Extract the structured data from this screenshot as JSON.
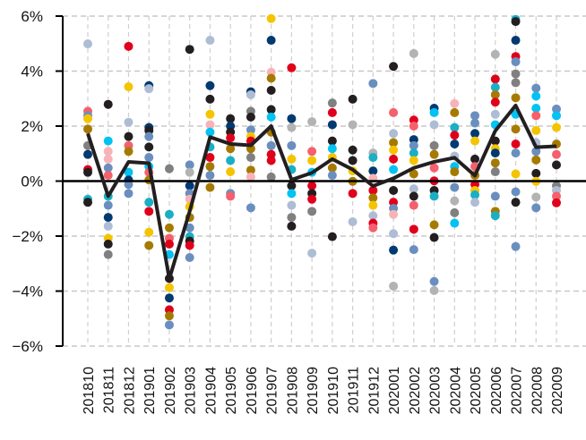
{
  "chart_data": {
    "type": "scatter",
    "title": "",
    "xlabel": "",
    "ylabel": "",
    "ylim": [
      -6,
      6
    ],
    "yticks": [
      6,
      4,
      2,
      0,
      -2,
      -4,
      -6
    ],
    "ytick_labels": [
      "6%",
      "4%",
      "2%",
      "0%",
      "−2%",
      "−4%",
      "−6%"
    ],
    "grid": true,
    "categories": [
      "201810",
      "201811",
      "201812",
      "201901",
      "201902",
      "201903",
      "201904",
      "201905",
      "201906",
      "201907",
      "201908",
      "201909",
      "201910",
      "201911",
      "201912",
      "202001",
      "202002",
      "202003",
      "202004",
      "202005",
      "202006",
      "202007",
      "202008",
      "202009"
    ],
    "palette": {
      "navy": "#003a70",
      "red": "#e0001b",
      "pink": "#f4606c",
      "lightpink": "#f7b3b8",
      "gold": "#f5c400",
      "darkgold": "#a67a00",
      "black": "#231f20",
      "gray": "#808080",
      "lightgray": "#b3b3b3",
      "steelblue": "#6a8fbf",
      "lightsteel": "#aebdd4",
      "cyan": "#00c2f3",
      "teal": "#1aafc4"
    },
    "line": {
      "color": "#231f20",
      "values": [
        1.73,
        -0.55,
        0.7,
        0.65,
        -3.55,
        -1.1,
        1.6,
        1.35,
        1.3,
        2.0,
        0.05,
        0.3,
        0.8,
        0.42,
        -0.18,
        0.1,
        0.48,
        0.7,
        0.85,
        0.2,
        1.83,
        2.75,
        1.23,
        1.27
      ]
    },
    "points": [
      [
        [
          4.99,
          "lightsteel"
        ],
        [
          2.54,
          "pink"
        ],
        [
          2.38,
          "steelblue"
        ],
        [
          2.27,
          "gold"
        ],
        [
          1.89,
          "darkgold"
        ],
        [
          1.29,
          "gray"
        ],
        [
          0.97,
          "navy"
        ],
        [
          0.42,
          "red"
        ],
        [
          0.32,
          "black"
        ],
        [
          -0.66,
          "teal"
        ],
        [
          -0.77,
          "black"
        ]
      ],
      [
        [
          2.79,
          "black"
        ],
        [
          1.46,
          "cyan"
        ],
        [
          1.08,
          "lightpink"
        ],
        [
          0.8,
          "lightpink"
        ],
        [
          0.48,
          "steelblue"
        ],
        [
          0.21,
          "pink"
        ],
        [
          -0.55,
          "teal"
        ],
        [
          -0.88,
          "steelblue"
        ],
        [
          -1.32,
          "navy"
        ],
        [
          -1.64,
          "lightsteel"
        ],
        [
          -2.08,
          "gold"
        ],
        [
          -2.29,
          "black"
        ],
        [
          -2.67,
          "gray"
        ]
      ],
      [
        [
          4.9,
          "red"
        ],
        [
          3.43,
          "gold"
        ],
        [
          2.14,
          "lightsteel"
        ],
        [
          1.62,
          "black"
        ],
        [
          1.29,
          "pink"
        ],
        [
          1.08,
          "darkgold"
        ],
        [
          0.32,
          "cyan"
        ],
        [
          0.04,
          "navy"
        ],
        [
          -0.12,
          "steelblue"
        ],
        [
          -0.45,
          "steelblue"
        ]
      ],
      [
        [
          3.47,
          "navy"
        ],
        [
          3.36,
          "lightsteel"
        ],
        [
          1.95,
          "navy"
        ],
        [
          1.84,
          "black"
        ],
        [
          1.62,
          "steelblue"
        ],
        [
          1.24,
          "black"
        ],
        [
          0.86,
          "steelblue"
        ],
        [
          0.53,
          "cyan"
        ],
        [
          0.32,
          "pink"
        ],
        [
          0.04,
          "darkgold"
        ],
        [
          -0.77,
          "teal"
        ],
        [
          -1.1,
          "red"
        ],
        [
          -1.86,
          "gold"
        ],
        [
          -2.34,
          "darkgold"
        ]
      ],
      [
        [
          0.45,
          "gray"
        ],
        [
          -1.21,
          "teal"
        ],
        [
          -1.7,
          "darkgold"
        ],
        [
          -2.08,
          "pink"
        ],
        [
          -2.29,
          "red"
        ],
        [
          -2.67,
          "cyan"
        ],
        [
          -3.54,
          "black"
        ],
        [
          -3.87,
          "gold"
        ],
        [
          -4.25,
          "navy"
        ],
        [
          -4.68,
          "red"
        ],
        [
          -4.9,
          "darkgold"
        ],
        [
          -5.23,
          "steelblue"
        ]
      ],
      [
        [
          4.79,
          "black"
        ],
        [
          0.59,
          "steelblue"
        ],
        [
          0.32,
          "lightgray"
        ],
        [
          -0.17,
          "navy"
        ],
        [
          -0.45,
          "steelblue"
        ],
        [
          -0.66,
          "lightpink"
        ],
        [
          -0.93,
          "gold"
        ],
        [
          -1.32,
          "darkgold"
        ],
        [
          -1.7,
          "steelblue"
        ],
        [
          -2.02,
          "teal"
        ],
        [
          -2.18,
          "black"
        ],
        [
          -2.34,
          "red"
        ],
        [
          -2.78,
          "steelblue"
        ]
      ],
      [
        [
          5.12,
          "lightsteel"
        ],
        [
          3.47,
          "navy"
        ],
        [
          2.98,
          "black"
        ],
        [
          2.43,
          "gold"
        ],
        [
          2.05,
          "lightpink"
        ],
        [
          1.78,
          "cyan"
        ],
        [
          1.24,
          "teal"
        ],
        [
          0.86,
          "red"
        ],
        [
          0.53,
          "darkgold"
        ],
        [
          0.21,
          "steelblue"
        ],
        [
          -0.23,
          "darkgold"
        ]
      ],
      [
        [
          2.27,
          "black"
        ],
        [
          2.0,
          "navy"
        ],
        [
          1.78,
          "black"
        ],
        [
          1.57,
          "red"
        ],
        [
          1.18,
          "darkgold"
        ],
        [
          0.75,
          "teal"
        ],
        [
          0.34,
          "gold"
        ],
        [
          -0.45,
          "steelblue"
        ],
        [
          -0.55,
          "pink"
        ]
      ],
      [
        [
          3.25,
          "navy"
        ],
        [
          3.14,
          "lightsteel"
        ],
        [
          2.54,
          "gray"
        ],
        [
          2.33,
          "black"
        ],
        [
          1.86,
          "steelblue"
        ],
        [
          1.62,
          "gold"
        ],
        [
          1.46,
          "red"
        ],
        [
          1.18,
          "darkgold"
        ],
        [
          0.86,
          "gray"
        ],
        [
          0.4,
          "darkgold"
        ],
        [
          0.15,
          "lightpink"
        ],
        [
          -0.97,
          "steelblue"
        ]
      ],
      [
        [
          5.91,
          "gold"
        ],
        [
          5.12,
          "navy"
        ],
        [
          3.96,
          "lightpink"
        ],
        [
          3.74,
          "darkgold"
        ],
        [
          3.3,
          "black"
        ],
        [
          2.6,
          "black"
        ],
        [
          2.33,
          "cyan"
        ],
        [
          1.78,
          "darkgold"
        ],
        [
          1.29,
          "steelblue"
        ],
        [
          0.97,
          "red"
        ],
        [
          0.75,
          "red"
        ],
        [
          0.15,
          "gray"
        ]
      ],
      [
        [
          4.12,
          "red"
        ],
        [
          2.27,
          "navy"
        ],
        [
          1.95,
          "lightgray"
        ],
        [
          1.29,
          "steelblue"
        ],
        [
          0.8,
          "gold"
        ],
        [
          0.42,
          "teal"
        ],
        [
          -0.17,
          "black"
        ],
        [
          -0.45,
          "cyan"
        ],
        [
          -0.88,
          "lightsteel"
        ],
        [
          -1.32,
          "gray"
        ],
        [
          -1.64,
          "black"
        ]
      ],
      [
        [
          2.16,
          "lightgray"
        ],
        [
          1.08,
          "pink"
        ],
        [
          0.75,
          "gold"
        ],
        [
          0.32,
          "cyan"
        ],
        [
          -0.17,
          "red"
        ],
        [
          -0.45,
          "black"
        ],
        [
          -0.66,
          "red"
        ],
        [
          -1.1,
          "gray"
        ],
        [
          -2.62,
          "lightsteel"
        ]
      ],
      [
        [
          2.84,
          "gray"
        ],
        [
          2.49,
          "red"
        ],
        [
          2.05,
          "navy"
        ],
        [
          1.46,
          "black"
        ],
        [
          1.18,
          "cyan"
        ],
        [
          0.86,
          "gold"
        ],
        [
          0.48,
          "darkgold"
        ],
        [
          0.21,
          "steelblue"
        ],
        [
          -2.02,
          "black"
        ]
      ],
      [
        [
          2.98,
          "black"
        ],
        [
          2.05,
          "lightgray"
        ],
        [
          1.13,
          "black"
        ],
        [
          0.75,
          "black"
        ],
        [
          0.37,
          "gold"
        ],
        [
          -0.01,
          "darkgold"
        ],
        [
          -0.45,
          "red"
        ],
        [
          -1.48,
          "lightsteel"
        ]
      ],
      [
        [
          3.55,
          "steelblue"
        ],
        [
          1.02,
          "lightgray"
        ],
        [
          0.86,
          "teal"
        ],
        [
          0.37,
          "navy"
        ],
        [
          0.1,
          "lightpink"
        ],
        [
          -0.34,
          "red"
        ],
        [
          -0.61,
          "darkgold"
        ],
        [
          -0.88,
          "gold"
        ],
        [
          -1.26,
          "lightsteel"
        ],
        [
          -1.53,
          "red"
        ],
        [
          -1.7,
          "pink"
        ]
      ],
      [
        [
          4.17,
          "black"
        ],
        [
          2.49,
          "pink"
        ],
        [
          1.73,
          "lightsteel"
        ],
        [
          1.4,
          "darkgold"
        ],
        [
          1.13,
          "gold"
        ],
        [
          0.8,
          "red"
        ],
        [
          0.42,
          "cyan"
        ],
        [
          -0.34,
          "black"
        ],
        [
          -0.77,
          "red"
        ],
        [
          -0.99,
          "steelblue"
        ],
        [
          -1.21,
          "lightpink"
        ],
        [
          -1.91,
          "lightsteel"
        ],
        [
          -2.51,
          "navy"
        ],
        [
          -3.82,
          "lightgray"
        ]
      ],
      [
        [
          4.64,
          "lightgray"
        ],
        [
          2.22,
          "red"
        ],
        [
          2.0,
          "pink"
        ],
        [
          1.51,
          "navy"
        ],
        [
          1.29,
          "steelblue"
        ],
        [
          1.02,
          "teal"
        ],
        [
          0.75,
          "gold"
        ],
        [
          0.26,
          "darkgold"
        ],
        [
          -0.28,
          "lightsteel"
        ],
        [
          -0.55,
          "black"
        ],
        [
          -0.88,
          "pink"
        ],
        [
          -1.75,
          "red"
        ],
        [
          -2.49,
          "steelblue"
        ]
      ],
      [
        [
          2.65,
          "navy"
        ],
        [
          2.49,
          "cyan"
        ],
        [
          2.05,
          "lightsteel"
        ],
        [
          1.29,
          "gray"
        ],
        [
          0.97,
          "darkgold"
        ],
        [
          0.48,
          "pink"
        ],
        [
          0.01,
          "red"
        ],
        [
          -0.34,
          "black"
        ],
        [
          -0.55,
          "teal"
        ],
        [
          -1.59,
          "darkgold"
        ],
        [
          -2.05,
          "black"
        ],
        [
          -3.65,
          "steelblue"
        ],
        [
          -3.98,
          "lightgray"
        ]
      ],
      [
        [
          2.82,
          "lightpink"
        ],
        [
          2.49,
          "darkgold"
        ],
        [
          1.95,
          "teal"
        ],
        [
          1.67,
          "red"
        ],
        [
          1.35,
          "navy"
        ],
        [
          0.91,
          "lightsteel"
        ],
        [
          0.53,
          "cyan"
        ],
        [
          0.34,
          "darkgold"
        ],
        [
          -0.23,
          "steelblue"
        ],
        [
          -0.72,
          "lightgray"
        ],
        [
          -1.15,
          "gray"
        ],
        [
          -1.53,
          "cyan"
        ]
      ],
      [
        [
          2.38,
          "steelblue"
        ],
        [
          2.11,
          "steelblue"
        ],
        [
          1.73,
          "navy"
        ],
        [
          1.46,
          "gold"
        ],
        [
          0.8,
          "black"
        ],
        [
          0.53,
          "pink"
        ],
        [
          0.21,
          "darkgold"
        ],
        [
          -0.12,
          "red"
        ],
        [
          -0.34,
          "gold"
        ],
        [
          -0.5,
          "teal"
        ],
        [
          -0.77,
          "lightsteel"
        ]
      ],
      [
        [
          4.61,
          "lightgray"
        ],
        [
          3.71,
          "red"
        ],
        [
          3.41,
          "teal"
        ],
        [
          3.14,
          "darkgold"
        ],
        [
          2.87,
          "red"
        ],
        [
          2.43,
          "lightsteel"
        ],
        [
          2.05,
          "cyan"
        ],
        [
          1.46,
          "black"
        ],
        [
          1.18,
          "gold"
        ],
        [
          1.02,
          "navy"
        ],
        [
          0.66,
          "darkgold"
        ],
        [
          0.34,
          "gray"
        ],
        [
          -0.55,
          "steelblue"
        ],
        [
          -1.1,
          "darkgold"
        ],
        [
          -1.26,
          "teal"
        ]
      ],
      [
        [
          5.88,
          "teal"
        ],
        [
          5.8,
          "black"
        ],
        [
          5.12,
          "navy"
        ],
        [
          4.53,
          "red"
        ],
        [
          4.34,
          "steelblue"
        ],
        [
          3.9,
          "gray"
        ],
        [
          3.58,
          "gray"
        ],
        [
          3.03,
          "darkgold"
        ],
        [
          2.43,
          "cyan"
        ],
        [
          1.89,
          "darkgold"
        ],
        [
          1.35,
          "red"
        ],
        [
          1.02,
          "steelblue"
        ],
        [
          0.26,
          "gold"
        ],
        [
          -0.39,
          "steelblue"
        ],
        [
          -0.77,
          "black"
        ],
        [
          -2.38,
          "steelblue"
        ]
      ],
      [
        [
          3.38,
          "steelblue"
        ],
        [
          3.09,
          "cyan"
        ],
        [
          2.65,
          "cyan"
        ],
        [
          2.38,
          "pink"
        ],
        [
          1.84,
          "gold"
        ],
        [
          1.4,
          "lightsteel"
        ],
        [
          1.08,
          "steelblue"
        ],
        [
          0.77,
          "darkgold"
        ],
        [
          0.28,
          "black"
        ],
        [
          -0.01,
          "gold"
        ],
        [
          -0.58,
          "lightgray"
        ],
        [
          -0.97,
          "steelblue"
        ]
      ],
      [
        [
          2.62,
          "steelblue"
        ],
        [
          2.38,
          "cyan"
        ],
        [
          1.95,
          "gold"
        ],
        [
          1.35,
          "darkgold"
        ],
        [
          0.97,
          "pink"
        ],
        [
          0.59,
          "black"
        ],
        [
          -0.17,
          "gray"
        ],
        [
          -0.34,
          "lightsteel"
        ],
        [
          -0.55,
          "pink"
        ],
        [
          -0.79,
          "red"
        ]
      ]
    ]
  }
}
